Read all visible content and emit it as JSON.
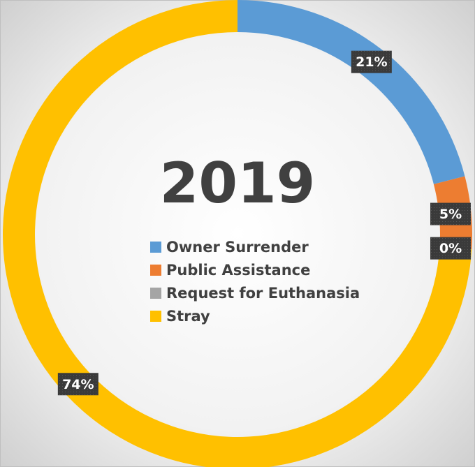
{
  "chart_data": {
    "type": "donut",
    "title": "2019",
    "categories": [
      "Owner Surrender",
      "Public Assistance",
      "Request for Euthanasia",
      "Stray"
    ],
    "values": [
      21,
      5,
      0,
      74
    ],
    "value_labels": [
      "21%",
      "5%",
      "0%",
      "74%"
    ],
    "colors": [
      "#5b9bd5",
      "#ed7d31",
      "#a5a5a5",
      "#ffc000"
    ],
    "legend": "center"
  }
}
